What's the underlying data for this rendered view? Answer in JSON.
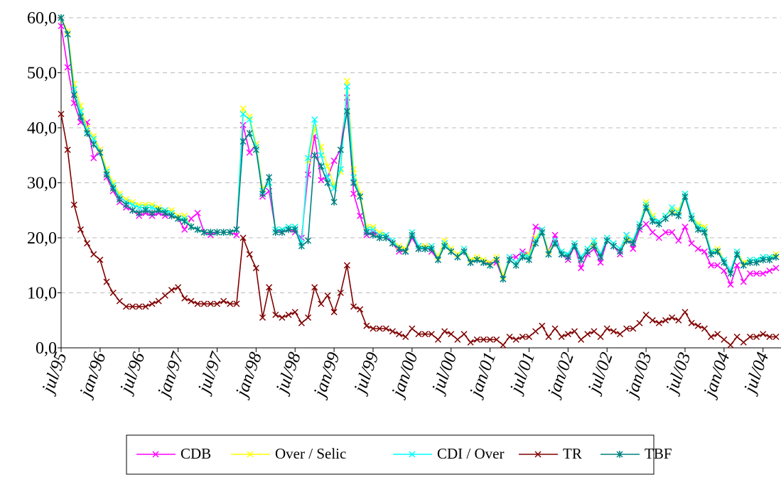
{
  "chart_data": {
    "type": "line",
    "categories": [
      "jul/95",
      null,
      null,
      null,
      null,
      null,
      "jan/96",
      null,
      null,
      null,
      null,
      null,
      "jul/96",
      null,
      null,
      null,
      null,
      null,
      "jan/97",
      null,
      null,
      null,
      null,
      null,
      "jul/97",
      null,
      null,
      null,
      null,
      null,
      "jan/98",
      null,
      null,
      null,
      null,
      null,
      "jul/98",
      null,
      null,
      null,
      null,
      null,
      "jan/99",
      null,
      null,
      null,
      null,
      null,
      "jul/99",
      null,
      null,
      null,
      null,
      null,
      "jan/00",
      null,
      null,
      null,
      null,
      null,
      "jul/00",
      null,
      null,
      null,
      null,
      null,
      "jan/01",
      null,
      null,
      null,
      null,
      null,
      "jul/01",
      null,
      null,
      null,
      null,
      null,
      "jan/02",
      null,
      null,
      null,
      null,
      null,
      "jul/02",
      null,
      null,
      null,
      null,
      null,
      "jan/03",
      null,
      null,
      null,
      null,
      null,
      "jul/03",
      null,
      null,
      null,
      null,
      null,
      "jan/04",
      null,
      null,
      null,
      null,
      null,
      "jul/04",
      null,
      null
    ],
    "ylim": [
      0,
      60
    ],
    "yticks": [
      {
        "value": 0,
        "label": "0,0"
      },
      {
        "value": 10,
        "label": "10,0"
      },
      {
        "value": 20,
        "label": "20,0"
      },
      {
        "value": 30,
        "label": "30,0"
      },
      {
        "value": 40,
        "label": "40,0"
      },
      {
        "value": 50,
        "label": "50,0"
      },
      {
        "value": 60,
        "label": "60,0"
      }
    ],
    "grid": true,
    "legend": "bottom",
    "series": [
      {
        "name": "CDB",
        "color": "#ff00ff",
        "marker": "x",
        "values": [
          58.5,
          51,
          44.5,
          41,
          41,
          34.5,
          36,
          31,
          28.5,
          26.5,
          25.5,
          25,
          24,
          24.5,
          24,
          24.5,
          24,
          24,
          23.5,
          21.5,
          23.5,
          24.5,
          21,
          20.5,
          21,
          21,
          21,
          20.5,
          40.5,
          35.5,
          37,
          27.5,
          28.5,
          21.5,
          21,
          21.5,
          21,
          20,
          31.5,
          38.5,
          30.5,
          31,
          34,
          36,
          45.5,
          28,
          24,
          20.5,
          21,
          20.5,
          20.5,
          19,
          17.5,
          17.5,
          20,
          18,
          18.5,
          17.5,
          16,
          19,
          17.5,
          16.5,
          17.5,
          15.5,
          16,
          15.5,
          15.5,
          15.5,
          12.5,
          16.5,
          16.5,
          17.5,
          17,
          22,
          21.5,
          17.5,
          20.5,
          17,
          16,
          18.5,
          14.5,
          17,
          18,
          15.5,
          19.5,
          18.5,
          17,
          20.5,
          18,
          21.5,
          22.5,
          21,
          20,
          21,
          21,
          19.5,
          22,
          19,
          18,
          17.5,
          15,
          15,
          14,
          11.5,
          15,
          12,
          13.5,
          13.5,
          13.5,
          14,
          14.5
        ]
      },
      {
        "name": "Over / Selic",
        "color": "#ffff00",
        "marker": "x",
        "values": [
          60,
          57.5,
          48,
          44,
          40,
          38.5,
          36,
          32.5,
          30,
          28,
          27,
          26.5,
          26,
          26,
          26,
          25.5,
          25,
          25,
          24,
          24,
          22,
          21.5,
          21,
          21,
          21,
          21,
          21,
          21.5,
          43.5,
          42,
          37,
          29,
          30,
          21.5,
          21.5,
          22,
          22,
          19,
          34,
          40,
          36.5,
          33,
          29.5,
          32,
          48.5,
          32.5,
          28,
          22,
          22,
          21,
          20.5,
          19.5,
          18.5,
          18,
          21,
          18.5,
          18.5,
          18.5,
          16.5,
          19.5,
          18,
          17,
          18,
          16,
          16.5,
          16,
          15.5,
          16.5,
          13,
          16.5,
          15.5,
          17,
          17,
          20,
          21.5,
          17.5,
          19.5,
          17.5,
          17,
          19,
          16.5,
          18,
          19,
          17,
          20,
          19,
          18,
          20,
          19.5,
          22.5,
          26.5,
          24,
          23,
          24,
          25,
          25,
          28,
          24,
          22.5,
          22,
          17.5,
          18,
          16,
          14,
          17.5,
          15.5,
          16,
          16,
          16.5,
          16.5,
          17
        ]
      },
      {
        "name": "CDI / Over",
        "color": "#00ffff",
        "marker": "x",
        "values": [
          60,
          57,
          47,
          43,
          39.5,
          38,
          35.5,
          32,
          29.5,
          27.5,
          26.5,
          26,
          25.5,
          25.5,
          25.5,
          25,
          25,
          24.5,
          23.5,
          23.5,
          22,
          21.5,
          21,
          21,
          21,
          21,
          21,
          21.5,
          42.5,
          41.5,
          36.5,
          28.5,
          30,
          21.5,
          21.5,
          22,
          22,
          19,
          34.5,
          41.5,
          35,
          31,
          29,
          32.5,
          47.5,
          31,
          27.5,
          21.5,
          21.5,
          20.5,
          20.5,
          19.5,
          18,
          17.5,
          21,
          18.5,
          18,
          18.5,
          16,
          19,
          17.5,
          16.5,
          18,
          15.5,
          16,
          15.5,
          15,
          16,
          12.5,
          16.5,
          15.5,
          17,
          16.5,
          19.5,
          21.5,
          17,
          19.5,
          17.5,
          17,
          19,
          16.5,
          18,
          19.5,
          17,
          20,
          19,
          18,
          20.5,
          19.5,
          22.5,
          26,
          23.5,
          23,
          24,
          25.5,
          24.5,
          28,
          24,
          22,
          21.5,
          17.5,
          17.5,
          16,
          14,
          17.5,
          15,
          16,
          16,
          16.5,
          16.5,
          16.5
        ]
      },
      {
        "name": "TR",
        "color": "#800000",
        "marker": "x",
        "values": [
          42.5,
          36,
          26,
          21.5,
          19,
          17,
          16,
          12,
          10,
          8.5,
          7.5,
          7.5,
          7.5,
          7.5,
          8,
          8.5,
          9.5,
          10.5,
          11,
          9,
          8.5,
          8,
          8,
          8,
          8,
          8.5,
          8,
          8,
          20,
          17,
          14.5,
          5.5,
          11,
          6,
          5.5,
          6,
          6.5,
          4.5,
          5.5,
          11,
          8,
          9.5,
          6.5,
          10,
          15,
          7.5,
          7,
          4,
          3.5,
          3.5,
          3.5,
          3,
          2.5,
          2,
          3.5,
          2.5,
          2.5,
          2.5,
          1.5,
          3,
          2.5,
          1.5,
          2.5,
          1,
          1.5,
          1.5,
          1.5,
          1.5,
          0.5,
          2,
          1.5,
          2,
          2,
          3,
          4,
          2,
          3.5,
          2,
          2.5,
          3,
          1.5,
          2.5,
          3,
          2,
          3.5,
          3,
          2.5,
          3.5,
          3.5,
          4.5,
          6,
          5,
          4.5,
          5,
          5.5,
          5,
          6.5,
          4.5,
          4,
          3.5,
          2,
          2.5,
          1.5,
          0.5,
          2,
          1,
          2,
          2,
          2.5,
          2,
          2
        ]
      },
      {
        "name": "TBF",
        "color": "#008080",
        "marker": "star",
        "values": [
          60,
          57,
          46,
          42,
          39,
          37,
          35.5,
          31.5,
          29,
          27,
          26,
          25,
          24.5,
          25,
          24.5,
          25,
          24.5,
          24,
          23.5,
          23,
          22,
          21.5,
          21,
          21,
          21,
          21,
          21,
          21.5,
          37.5,
          39,
          36,
          28,
          31,
          21,
          21,
          21.5,
          21.5,
          18.5,
          19.5,
          35,
          33,
          30,
          26.5,
          36,
          43,
          30,
          27.5,
          21,
          20.5,
          20,
          20,
          19,
          18,
          17.5,
          20.5,
          18,
          18,
          18,
          16,
          18.5,
          17.5,
          16.5,
          17.5,
          15.5,
          16,
          15.5,
          15,
          16,
          12.5,
          16,
          15,
          16.5,
          16,
          19,
          21,
          17,
          19,
          17,
          16.5,
          18.5,
          16,
          17.5,
          18.5,
          16.5,
          19.5,
          18.5,
          17.5,
          19.5,
          19,
          22,
          25.5,
          23,
          22.5,
          23.5,
          24.5,
          24,
          27.5,
          23.5,
          21.5,
          21,
          17,
          17.5,
          15.5,
          13.5,
          17,
          15,
          15.5,
          15.5,
          16,
          16,
          16.5
        ]
      }
    ]
  }
}
